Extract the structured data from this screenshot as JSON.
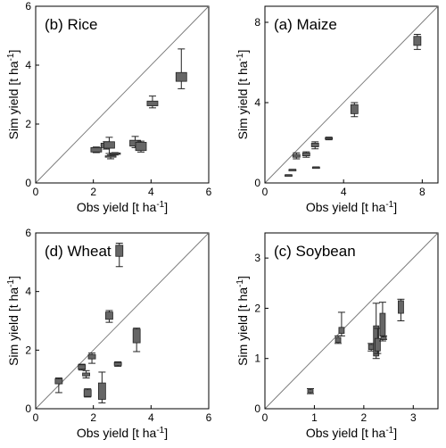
{
  "chart_data": [
    {
      "type": "box",
      "panel_label": "(b) Rice",
      "xlabel": "Obs yield [t ha",
      "ylabel": "Sim yield [t ha",
      "unit_superscript": "-1",
      "unit_close": "]",
      "xlim": [
        0,
        6
      ],
      "ylim": [
        0,
        6
      ],
      "xticks": [
        0,
        2,
        4,
        6
      ],
      "yticks": [
        0,
        2,
        4,
        6
      ],
      "x_tick_labels": [
        "0",
        "2",
        "4",
        "6"
      ],
      "y_tick_labels": [
        "0",
        "2",
        "4",
        "6"
      ],
      "one_to_one_line": true,
      "boxes": [
        {
          "x": 2.1,
          "whisker_low": 1.03,
          "q1": 1.05,
          "q3": 1.2,
          "whisker_high": 1.22
        },
        {
          "x": 2.45,
          "whisker_low": 1.15,
          "q1": 1.2,
          "q3": 1.35,
          "whisker_high": 1.4
        },
        {
          "x": 2.55,
          "whisker_low": 1.0,
          "q1": 1.18,
          "q3": 1.4,
          "whisker_high": 1.55
        },
        {
          "x": 2.6,
          "whisker_low": 0.82,
          "q1": 0.88,
          "q3": 0.92,
          "whisker_high": 0.95
        },
        {
          "x": 2.75,
          "whisker_low": 0.95,
          "q1": 0.97,
          "q3": 1.02,
          "whisker_high": 1.03
        },
        {
          "x": 3.45,
          "whisker_low": 1.2,
          "q1": 1.25,
          "q3": 1.45,
          "whisker_high": 1.58
        },
        {
          "x": 3.65,
          "whisker_low": 1.05,
          "q1": 1.1,
          "q3": 1.38,
          "whisker_high": 1.42
        },
        {
          "x": 4.05,
          "whisker_low": 2.55,
          "q1": 2.62,
          "q3": 2.78,
          "whisker_high": 2.95
        },
        {
          "x": 5.05,
          "whisker_low": 3.2,
          "q1": 3.45,
          "q3": 3.75,
          "whisker_high": 4.55
        }
      ]
    },
    {
      "type": "box",
      "panel_label": "(a) Maize",
      "xlabel": "Obs yield [t ha",
      "ylabel": "Sim yield [t ha",
      "unit_superscript": "-1",
      "unit_close": "]",
      "xlim": [
        0,
        8.8
      ],
      "ylim": [
        0,
        8.8
      ],
      "xticks": [
        0,
        4,
        8
      ],
      "yticks": [
        0,
        4,
        8
      ],
      "x_tick_labels": [
        "0",
        "4",
        "8"
      ],
      "y_tick_labels": [
        "0",
        "4",
        "8"
      ],
      "one_to_one_line": true,
      "boxes": [
        {
          "x": 1.4,
          "whisker_low": 0.62,
          "q1": 0.63,
          "q3": 0.67,
          "whisker_high": 0.68
        },
        {
          "x": 1.2,
          "whisker_low": 0.35,
          "q1": 0.36,
          "q3": 0.4,
          "whisker_high": 0.41
        },
        {
          "x": 1.6,
          "whisker_low": 1.2,
          "q1": 1.28,
          "q3": 1.42,
          "whisker_high": 1.5
        },
        {
          "x": 2.1,
          "whisker_low": 1.28,
          "q1": 1.35,
          "q3": 1.5,
          "whisker_high": 1.55
        },
        {
          "x": 2.55,
          "whisker_low": 1.7,
          "q1": 1.8,
          "q3": 1.98,
          "whisker_high": 2.05
        },
        {
          "x": 2.6,
          "whisker_low": 0.74,
          "q1": 0.76,
          "q3": 0.79,
          "whisker_high": 0.8
        },
        {
          "x": 3.25,
          "whisker_low": 2.15,
          "q1": 2.18,
          "q3": 2.25,
          "whisker_high": 2.28
        },
        {
          "x": 4.55,
          "whisker_low": 3.3,
          "q1": 3.45,
          "q3": 3.9,
          "whisker_high": 4.0
        },
        {
          "x": 7.75,
          "whisker_low": 6.65,
          "q1": 6.85,
          "q3": 7.3,
          "whisker_high": 7.4
        }
      ]
    },
    {
      "type": "box",
      "panel_label": "(d) Wheat",
      "xlabel": "Obs yield [t ha",
      "ylabel": "Sim yield [t ha",
      "unit_superscript": "-1",
      "unit_close": "]",
      "xlim": [
        0,
        6
      ],
      "ylim": [
        0,
        6
      ],
      "xticks": [
        0,
        2,
        4,
        6
      ],
      "yticks": [
        0,
        2,
        4,
        6
      ],
      "x_tick_labels": [
        "0",
        "2",
        "4",
        "6"
      ],
      "y_tick_labels": [
        "0",
        "2",
        "4",
        "6"
      ],
      "one_to_one_line": true,
      "boxes": [
        {
          "x": 0.8,
          "whisker_low": 0.55,
          "q1": 0.85,
          "q3": 1.02,
          "whisker_high": 1.05
        },
        {
          "x": 1.6,
          "whisker_low": 1.32,
          "q1": 1.35,
          "q3": 1.5,
          "whisker_high": 1.52
        },
        {
          "x": 1.75,
          "whisker_low": 1.05,
          "q1": 1.12,
          "q3": 1.22,
          "whisker_high": 1.3
        },
        {
          "x": 1.8,
          "whisker_low": 0.4,
          "q1": 0.42,
          "q3": 0.65,
          "whisker_high": 0.68
        },
        {
          "x": 1.95,
          "whisker_low": 1.55,
          "q1": 1.7,
          "q3": 1.85,
          "whisker_high": 1.9
        },
        {
          "x": 2.3,
          "whisker_low": 0.2,
          "q1": 0.32,
          "q3": 0.88,
          "whisker_high": 1.25
        },
        {
          "x": 2.55,
          "whisker_low": 2.95,
          "q1": 3.05,
          "q3": 3.3,
          "whisker_high": 3.35
        },
        {
          "x": 2.85,
          "whisker_low": 1.45,
          "q1": 1.48,
          "q3": 1.58,
          "whisker_high": 1.6
        },
        {
          "x": 2.9,
          "whisker_low": 4.85,
          "q1": 5.2,
          "q3": 5.58,
          "whisker_high": 5.65
        },
        {
          "x": 3.5,
          "whisker_low": 1.95,
          "q1": 2.25,
          "q3": 2.72,
          "whisker_high": 2.75
        }
      ]
    },
    {
      "type": "box",
      "panel_label": "(c) Soybean",
      "xlabel": "Obs yield [t ha",
      "ylabel": "Sim yield [t ha",
      "unit_superscript": "-1",
      "unit_close": "]",
      "xlim": [
        0,
        3.5
      ],
      "ylim": [
        0,
        3.5
      ],
      "xticks": [
        0,
        1,
        2,
        3
      ],
      "yticks": [
        0,
        1,
        2,
        3
      ],
      "x_tick_labels": [
        "0",
        "1",
        "2",
        "3"
      ],
      "y_tick_labels": [
        "0",
        "1",
        "2",
        "3"
      ],
      "one_to_one_line": true,
      "boxes": [
        {
          "x": 0.92,
          "whisker_low": 0.3,
          "q1": 0.32,
          "q3": 0.38,
          "whisker_high": 0.4
        },
        {
          "x": 1.48,
          "whisker_low": 1.3,
          "q1": 1.32,
          "q3": 1.42,
          "whisker_high": 1.45
        },
        {
          "x": 1.55,
          "whisker_low": 1.45,
          "q1": 1.5,
          "q3": 1.62,
          "whisker_high": 1.92
        },
        {
          "x": 2.15,
          "whisker_low": 1.15,
          "q1": 1.18,
          "q3": 1.28,
          "whisker_high": 1.3
        },
        {
          "x": 2.25,
          "whisker_low": 1.0,
          "q1": 1.05,
          "q3": 1.65,
          "whisker_high": 2.1
        },
        {
          "x": 2.28,
          "whisker_low": 1.1,
          "q1": 1.15,
          "q3": 1.4,
          "whisker_high": 1.6
        },
        {
          "x": 2.38,
          "whisker_low": 1.35,
          "q1": 1.45,
          "q3": 1.9,
          "whisker_high": 2.12
        },
        {
          "x": 2.4,
          "whisker_low": 1.38,
          "q1": 1.38,
          "q3": 1.43,
          "whisker_high": 1.45
        },
        {
          "x": 2.75,
          "whisker_low": 1.75,
          "q1": 1.9,
          "q3": 2.15,
          "whisker_high": 2.18
        }
      ]
    }
  ]
}
